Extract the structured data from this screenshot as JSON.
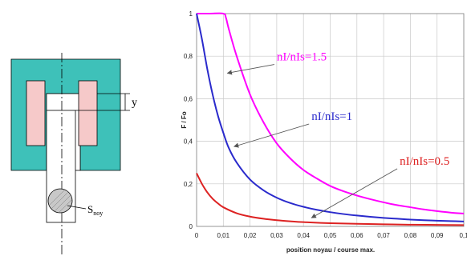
{
  "diagram": {
    "labels": {
      "y": "y",
      "s_main": "S",
      "s_sub": "noy"
    },
    "colors": {
      "body": "#3ec1b9",
      "coil": "#f6c9c9",
      "core": "#ffffff",
      "ball": "#c8c8c8",
      "line": "#000000"
    }
  },
  "chart_data": {
    "type": "line",
    "xlabel": "position noyau / course max.",
    "ylabel": "F / Fo",
    "xlim": [
      0,
      0.1
    ],
    "ylim": [
      0,
      1
    ],
    "xticks": [
      "0",
      "0,01",
      "0,02",
      "0,03",
      "0,04",
      "0,05",
      "0,06",
      "0,07",
      "0,08",
      "0,09",
      "0,1"
    ],
    "yticks": [
      "0",
      "0,2",
      "0,4",
      "0,6",
      "0,8",
      "1"
    ],
    "grid": true,
    "series": [
      {
        "name": "nI/nIs=1.5",
        "color": "#ff00ff",
        "x": [
          0,
          0.005,
          0.01,
          0.011,
          0.012,
          0.015,
          0.02,
          0.025,
          0.03,
          0.035,
          0.04,
          0.045,
          0.05,
          0.055,
          0.06,
          0.065,
          0.07,
          0.075,
          0.08,
          0.085,
          0.09,
          0.095,
          0.1
        ],
        "y": [
          1,
          1,
          1,
          0.98,
          0.93,
          0.8,
          0.62,
          0.49,
          0.39,
          0.32,
          0.265,
          0.225,
          0.19,
          0.165,
          0.145,
          0.128,
          0.113,
          0.1,
          0.09,
          0.08,
          0.072,
          0.065,
          0.06
        ]
      },
      {
        "name": "nI/nIs=1",
        "color": "#2a2acc",
        "x": [
          0,
          0.002,
          0.004,
          0.006,
          0.008,
          0.01,
          0.012,
          0.015,
          0.02,
          0.025,
          0.03,
          0.035,
          0.04,
          0.045,
          0.05,
          0.055,
          0.06,
          0.065,
          0.07,
          0.075,
          0.08,
          0.085,
          0.09,
          0.095,
          0.1
        ],
        "y": [
          1,
          0.88,
          0.74,
          0.62,
          0.52,
          0.44,
          0.37,
          0.3,
          0.22,
          0.17,
          0.135,
          0.11,
          0.092,
          0.078,
          0.067,
          0.058,
          0.051,
          0.045,
          0.04,
          0.036,
          0.032,
          0.029,
          0.027,
          0.025,
          0.023
        ]
      },
      {
        "name": "nI/nIs=0.5",
        "color": "#dd2222",
        "x": [
          0,
          0.002,
          0.004,
          0.006,
          0.008,
          0.01,
          0.015,
          0.02,
          0.025,
          0.03,
          0.035,
          0.04,
          0.05,
          0.06,
          0.07,
          0.08,
          0.09,
          0.1
        ],
        "y": [
          0.25,
          0.2,
          0.16,
          0.13,
          0.108,
          0.09,
          0.062,
          0.046,
          0.036,
          0.029,
          0.024,
          0.02,
          0.015,
          0.012,
          0.01,
          0.008,
          0.007,
          0.006
        ]
      }
    ],
    "annotations": [
      {
        "text": "nI/nIs=1.5",
        "color": "#ff00ff",
        "x": 0.03,
        "y": 0.78,
        "target": [
          0.0115,
          0.72
        ]
      },
      {
        "text": "nI/nIs=1",
        "color": "#2a2acc",
        "x": 0.043,
        "y": 0.5,
        "target": [
          0.014,
          0.375
        ]
      },
      {
        "text": "nI/nIs=0.5",
        "color": "#dd2222",
        "x": 0.076,
        "y": 0.29,
        "target": [
          0.043,
          0.04
        ]
      }
    ]
  }
}
